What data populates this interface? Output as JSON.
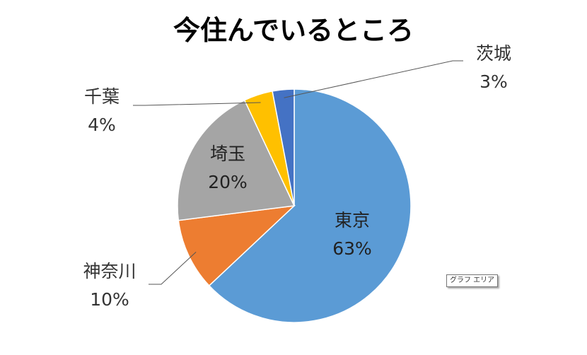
{
  "chart_data": {
    "type": "pie",
    "title": "今住んでいるところ",
    "slices": [
      {
        "label": "東京",
        "value": 63,
        "display": "63%",
        "color": "#5B9BD5"
      },
      {
        "label": "神奈川",
        "value": 10,
        "display": "10%",
        "color": "#ED7D31"
      },
      {
        "label": "埼玉",
        "value": 20,
        "display": "20%",
        "color": "#A5A5A5"
      },
      {
        "label": "千葉",
        "value": 4,
        "display": "4%",
        "color": "#FFC000"
      },
      {
        "label": "茨城",
        "value": 3,
        "display": "3%",
        "color": "#4472C4"
      }
    ],
    "start": "12 o'clock",
    "direction": "clockwise",
    "legend": "none"
  },
  "tooltip": {
    "text": "グラフ エリア"
  }
}
